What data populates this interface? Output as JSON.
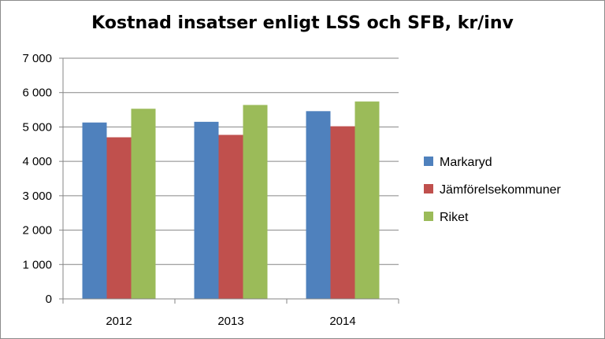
{
  "chart_data": {
    "type": "bar",
    "title": "Kostnad insatser enligt LSS och SFB, kr/inv",
    "categories": [
      "2012",
      "2013",
      "2014"
    ],
    "series": [
      {
        "name": "Markaryd",
        "color": "#4f81bd",
        "values": [
          5130,
          5150,
          5460
        ]
      },
      {
        "name": "Jämförelsekommuner",
        "color": "#c0504d",
        "values": [
          4700,
          4770,
          5020
        ]
      },
      {
        "name": "Riket",
        "color": "#9bbb59",
        "values": [
          5530,
          5640,
          5740
        ]
      }
    ],
    "y_ticks": [
      "0",
      "1 000",
      "2 000",
      "3 000",
      "4 000",
      "5 000",
      "6 000",
      "7 000"
    ],
    "ylim": [
      0,
      7000
    ],
    "grid": true,
    "legend_position": "right"
  }
}
